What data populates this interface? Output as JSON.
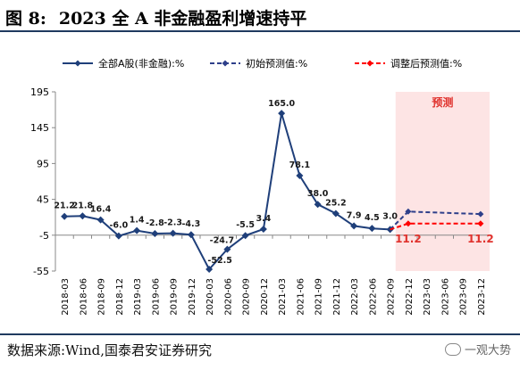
{
  "header": {
    "figure_label": "图 8:",
    "title": "2023 全 A 非金融盈利增速持平"
  },
  "footer": {
    "source": "数据来源:Wind,国泰君安证券研究",
    "watermark": "一观大势"
  },
  "colors": {
    "series_actual": "#1f3f7a",
    "series_initial": "#2e3f8a",
    "series_adjusted": "#ff0000",
    "forecast_shade": "#fde4e4",
    "forecast_text": "#e0322d"
  },
  "chart_data": {
    "type": "line",
    "title": "",
    "xlabel": "",
    "ylabel": "",
    "ylim": [
      -55,
      195
    ],
    "yticks": [
      -55,
      -5,
      45,
      95,
      145,
      195
    ],
    "grid": false,
    "legend_position": "top",
    "categories": [
      "2018-03",
      "2018-06",
      "2018-09",
      "2018-12",
      "2019-03",
      "2019-06",
      "2019-09",
      "2019-12",
      "2020-03",
      "2020-06",
      "2020-09",
      "2020-12",
      "2021-03",
      "2021-06",
      "2021-09",
      "2021-12",
      "2022-03",
      "2022-06",
      "2022-09",
      "2022-12",
      "2023-03",
      "2023-06",
      "2023-09",
      "2023-12"
    ],
    "series": [
      {
        "name": "全部A股(非金融):%",
        "style": "solid-diamond",
        "values": [
          21.2,
          21.8,
          16.4,
          -6.0,
          1.4,
          -2.8,
          -2.3,
          -4.3,
          -52.5,
          -24.7,
          -5.5,
          3.4,
          165.0,
          78.1,
          38.0,
          25.2,
          7.9,
          4.5,
          3.0,
          null,
          null,
          null,
          null,
          null
        ],
        "labels": [
          "21.2",
          "21.8",
          "16.4",
          "-6.0",
          "1.4",
          "-2.8",
          "-2.3",
          "-4.3",
          "-52.5",
          "-24.7",
          "-5.5",
          "3.4",
          "165.0",
          "78.1",
          "38.0",
          "25.2",
          "7.9",
          "4.5",
          "3.0",
          null,
          null,
          null,
          null,
          null
        ]
      },
      {
        "name": "初始预测值:%",
        "style": "dashed-diamond",
        "values": [
          null,
          null,
          null,
          null,
          null,
          null,
          null,
          null,
          null,
          null,
          null,
          null,
          null,
          null,
          null,
          null,
          null,
          null,
          3.0,
          28.0,
          null,
          null,
          null,
          24.5
        ]
      },
      {
        "name": "调整后预测值:%",
        "style": "dashed-diamond",
        "values": [
          null,
          null,
          null,
          null,
          null,
          null,
          null,
          null,
          null,
          null,
          null,
          null,
          null,
          null,
          null,
          null,
          null,
          null,
          3.0,
          11.2,
          null,
          null,
          null,
          11.2
        ],
        "labels": [
          null,
          null,
          null,
          null,
          null,
          null,
          null,
          null,
          null,
          null,
          null,
          null,
          null,
          null,
          null,
          null,
          null,
          null,
          null,
          "11.2",
          null,
          null,
          null,
          "11.2"
        ]
      }
    ],
    "forecast_region": {
      "from": "2022-12",
      "to": "2023-12",
      "label": "预测"
    }
  }
}
